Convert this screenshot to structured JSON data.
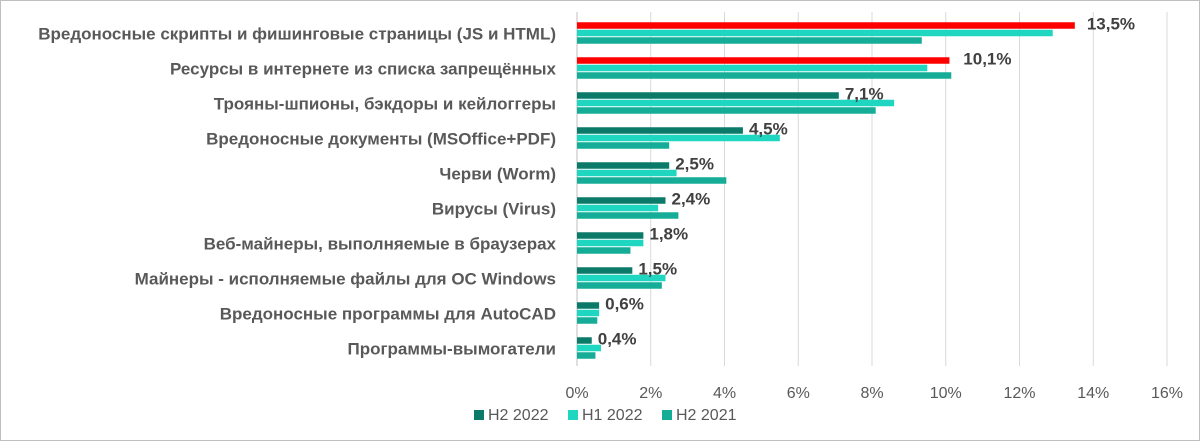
{
  "chart_data": {
    "type": "bar",
    "orientation": "horizontal",
    "categories": [
      "Вредоносные скрипты и фишинговые страницы (JS и HTML)",
      "Ресурсы в интернете из списка запрещённых",
      "Трояны-шпионы, бэкдоры и кейлоггеры",
      "Вредоносные документы (MSOffice+PDF)",
      "Черви (Worm)",
      "Вирусы (Virus)",
      "Веб-майнеры, выполняемые в браузерах",
      "Майнеры - исполняемые файлы для ОС Windows",
      "Вредоносные программы для AutoCAD",
      "Программы-вымогатели"
    ],
    "series": [
      {
        "name": "H2 2022",
        "color": "#0b7a68",
        "values": [
          13.5,
          10.1,
          7.1,
          4.5,
          2.5,
          2.4,
          1.8,
          1.5,
          0.6,
          0.4
        ],
        "highlight": [
          true,
          true,
          false,
          false,
          false,
          false,
          false,
          false,
          false,
          false
        ],
        "highlight_color": "#ff0000",
        "data_labels": [
          "13,5%",
          "10,1%",
          "7,1%",
          "4,5%",
          "2,5%",
          "2,4%",
          "1,8%",
          "1,5%",
          "0,6%",
          "0,4%"
        ]
      },
      {
        "name": "H1 2022",
        "color": "#1fd6c0",
        "values": [
          12.9,
          9.5,
          8.6,
          5.5,
          2.7,
          2.2,
          1.8,
          2.4,
          0.6,
          0.65
        ]
      },
      {
        "name": "H2 2021",
        "color": "#16ad98",
        "values": [
          9.35,
          10.15,
          8.1,
          2.5,
          4.05,
          2.75,
          1.45,
          2.3,
          0.55,
          0.5
        ]
      }
    ],
    "xlim": [
      0,
      16
    ],
    "xticks": [
      0,
      2,
      4,
      6,
      8,
      10,
      12,
      14,
      16
    ],
    "xtick_labels": [
      "0%",
      "2%",
      "4%",
      "6%",
      "8%",
      "10%",
      "12%",
      "14%",
      "16%"
    ],
    "grid": true,
    "legend_position": "bottom"
  }
}
